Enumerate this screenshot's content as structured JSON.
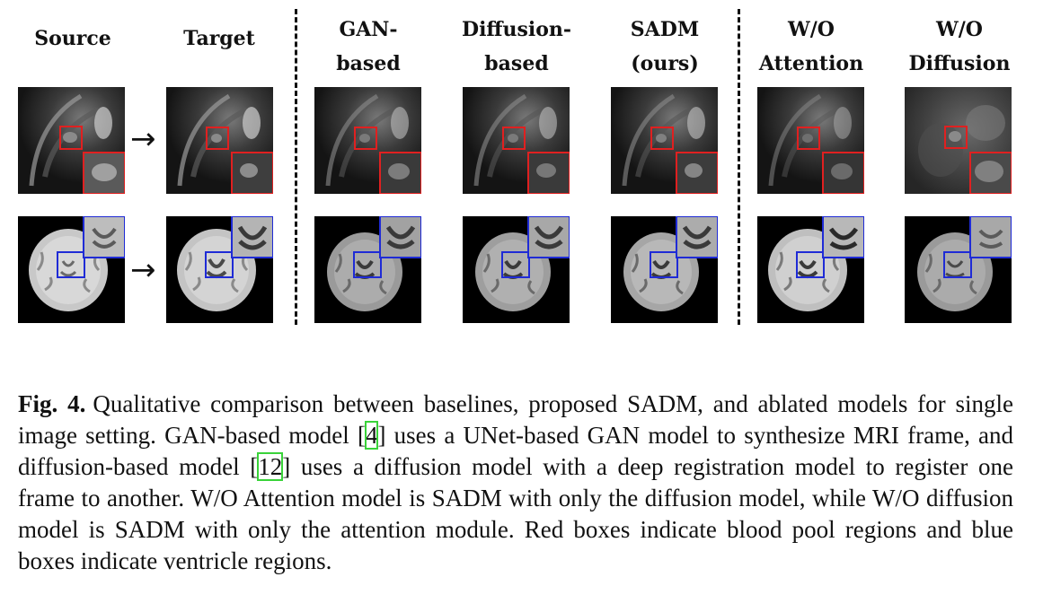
{
  "figure": {
    "columns": [
      {
        "id": "source",
        "header": "Source"
      },
      {
        "id": "target",
        "header": "Target"
      },
      {
        "id": "gan",
        "header": "GAN-\nbased"
      },
      {
        "id": "diffusion",
        "header": "Diffusion-\nbased"
      },
      {
        "id": "sadm",
        "header": "SADM\n(ours)"
      },
      {
        "id": "wo-attention",
        "header": "W/O\nAttention"
      },
      {
        "id": "wo-diffusion",
        "header": "W/O\nDiffusion"
      }
    ],
    "arrow_glyph": "→",
    "rows": [
      {
        "id": "cardiac",
        "box_color": "#e02020",
        "box_meaning": "blood pool regions"
      },
      {
        "id": "brain",
        "box_color": "#1f2bd6",
        "box_meaning": "ventricle regions"
      }
    ]
  },
  "caption": {
    "label": "Fig. 4.",
    "part1": "Qualitative comparison between baselines, proposed SADM, and ablated models for single image setting. GAN-based model [",
    "ref1": "4",
    "part2": "] uses a UNet-based GAN model to synthesize MRI frame, and diffusion-based model [",
    "ref2": "12",
    "part3": "] uses a diffusion model with a deep registration model to register one frame to another. W/O Attention model is SADM with only the diffusion model, while W/O diffusion model is SADM with only the attention module. Red boxes indicate blood pool regions and blue boxes indicate ventricle regions."
  }
}
